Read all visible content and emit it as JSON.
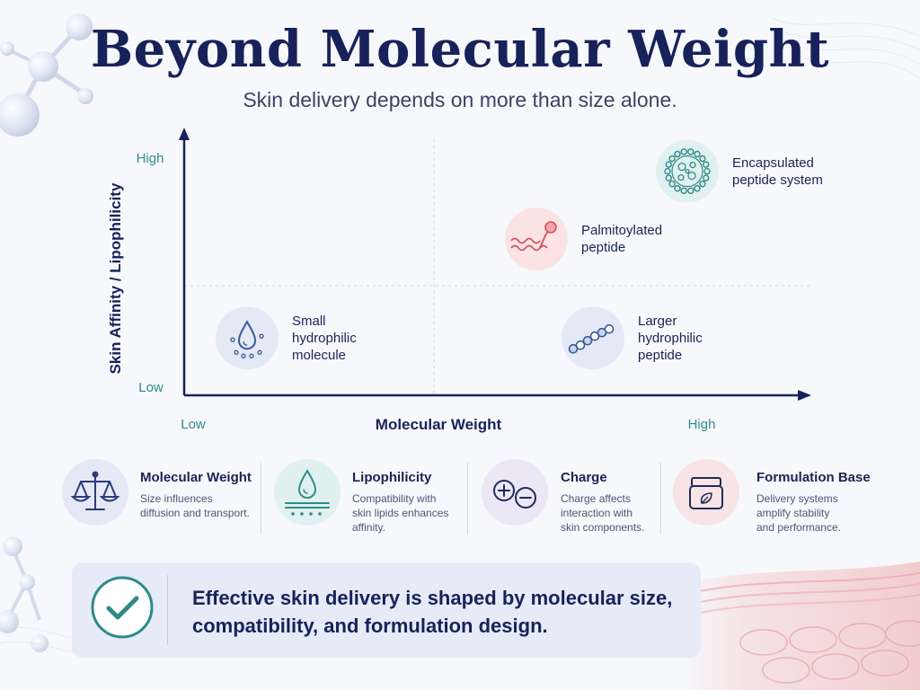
{
  "header": {
    "title": "Beyond Molecular Weight",
    "subtitle": "Skin delivery depends on more than size alone."
  },
  "chart_data": {
    "type": "scatter",
    "title": "",
    "xlabel": "Molecular Weight",
    "ylabel": "Skin Affinity / Lipophilicity",
    "x_ticks": [
      "Low",
      "High"
    ],
    "y_ticks": [
      "Low",
      "High"
    ],
    "xlim": [
      0,
      1
    ],
    "ylim": [
      0,
      1
    ],
    "grid": "dashed midlines",
    "points": [
      {
        "label": "Small hydrophilic molecule",
        "lines": [
          "Small",
          "hydrophilic",
          "molecule"
        ],
        "x": 0.1,
        "y": 0.22,
        "icon": "water-drop-icon",
        "color": "#3a5a9a"
      },
      {
        "label": "Larger hydrophilic peptide",
        "lines": [
          "Larger",
          "hydrophilic",
          "peptide"
        ],
        "x": 0.65,
        "y": 0.22,
        "icon": "peptide-chain-icon",
        "color": "#3a5a9a"
      },
      {
        "label": "Palmitoylated peptide",
        "lines": [
          "Palmitoylated",
          "peptide"
        ],
        "x": 0.56,
        "y": 0.6,
        "icon": "lipid-tail-peptide-icon",
        "color": "#d0525e"
      },
      {
        "label": "Encapsulated peptide system",
        "lines": [
          "Encapsulated",
          "peptide system"
        ],
        "x": 0.8,
        "y": 0.86,
        "icon": "liposome-icon",
        "color": "#2f8a8a"
      }
    ]
  },
  "factors": [
    {
      "title": "Molecular Weight",
      "desc": [
        "Size influences",
        "diffusion and transport."
      ],
      "icon": "balance-scale-icon"
    },
    {
      "title": "Lipophilicity",
      "desc": [
        "Compatibility with",
        "skin lipids enhances",
        "affinity."
      ],
      "icon": "droplet-on-lipid-layer-icon"
    },
    {
      "title": "Charge",
      "desc": [
        "Charge affects",
        "interaction with",
        "skin components."
      ],
      "icon": "plus-minus-charge-icon"
    },
    {
      "title": "Formulation Base",
      "desc": [
        "Delivery systems",
        "amplify stability",
        "and performance."
      ],
      "icon": "cream-jar-icon"
    }
  ],
  "banner": {
    "lines": [
      "Effective skin delivery is shaped by molecular size,",
      "compatibility, and formulation design."
    ],
    "icon": "checkmark-icon"
  },
  "colors": {
    "navy": "#17225a",
    "teal": "#2f8a8a",
    "pink": "#d0525e",
    "blue": "#3a5a9a"
  }
}
